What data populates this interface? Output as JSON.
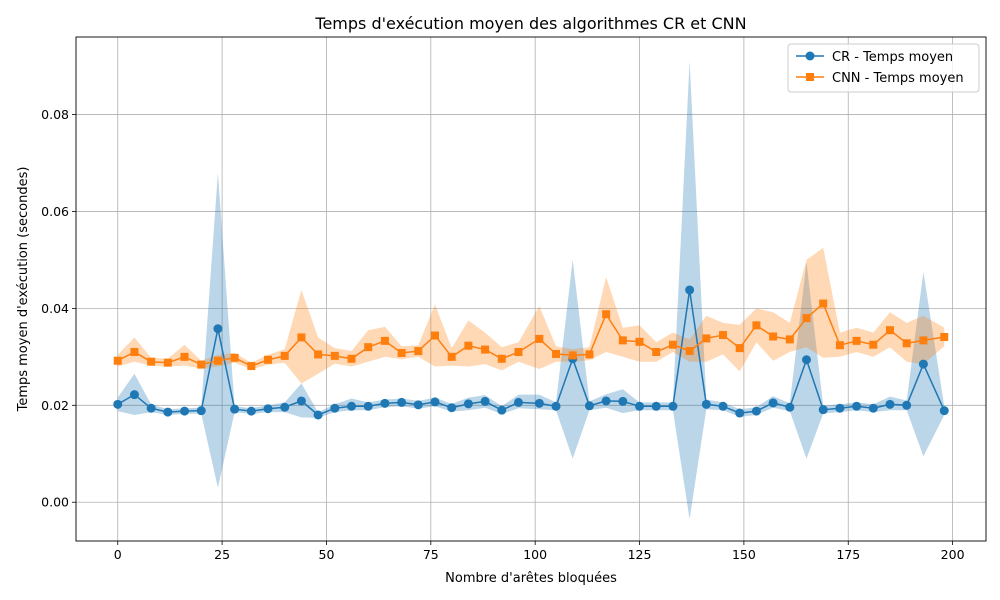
{
  "chart_data": {
    "type": "line",
    "title": "Temps d'exécution moyen des algorithmes CR et CNN",
    "xlabel": "Nombre d'arêtes bloquées",
    "ylabel": "Temps moyen d'exécution (secondes)",
    "xlim": [
      -10,
      208
    ],
    "ylim": [
      -0.008,
      0.096
    ],
    "xticks": [
      0,
      25,
      50,
      75,
      100,
      125,
      150,
      175,
      200
    ],
    "yticks": [
      0.0,
      0.02,
      0.04,
      0.06,
      0.08
    ],
    "ytick_labels": [
      "0.00",
      "0.02",
      "0.04",
      "0.06",
      "0.08"
    ],
    "grid": true,
    "legend_position": "top-right",
    "x": [
      0,
      4,
      8,
      12,
      16,
      20,
      24,
      28,
      32,
      36,
      40,
      44,
      48,
      52,
      56,
      60,
      64,
      68,
      72,
      76,
      80,
      84,
      88,
      92,
      96,
      101,
      105,
      109,
      113,
      117,
      121,
      125,
      129,
      133,
      137,
      141,
      145,
      149,
      153,
      157,
      161,
      165,
      169,
      173,
      177,
      181,
      185,
      189,
      193,
      198
    ],
    "series": [
      {
        "name": "CR - Temps moyen",
        "color": "#1f77b4",
        "band_color": "#1f77b4",
        "marker": "circle",
        "values": [
          0.0202,
          0.0222,
          0.0194,
          0.0186,
          0.0188,
          0.0189,
          0.0358,
          0.0192,
          0.0188,
          0.0193,
          0.0196,
          0.0209,
          0.018,
          0.0194,
          0.0198,
          0.0198,
          0.0204,
          0.0206,
          0.0201,
          0.0207,
          0.0195,
          0.0203,
          0.0208,
          0.019,
          0.0206,
          0.0204,
          0.0198,
          0.0296,
          0.0199,
          0.0209,
          0.0208,
          0.0198,
          0.0198,
          0.0198,
          0.0438,
          0.0202,
          0.0198,
          0.0184,
          0.0188,
          0.0205,
          0.0196,
          0.0294,
          0.0191,
          0.0194,
          0.0198,
          0.0194,
          0.0202,
          0.02,
          0.0285,
          0.0189
        ],
        "lower": [
          0.0188,
          0.018,
          0.0186,
          0.018,
          0.0182,
          0.0183,
          0.003,
          0.0186,
          0.0182,
          0.0186,
          0.0186,
          0.0175,
          0.0174,
          0.0186,
          0.019,
          0.019,
          0.0196,
          0.0198,
          0.0193,
          0.0198,
          0.0187,
          0.019,
          0.0195,
          0.0182,
          0.0194,
          0.0192,
          0.019,
          0.009,
          0.019,
          0.0195,
          0.0184,
          0.019,
          0.019,
          0.019,
          -0.0035,
          0.0192,
          0.019,
          0.0176,
          0.018,
          0.0195,
          0.0188,
          0.009,
          0.0183,
          0.0186,
          0.019,
          0.0186,
          0.019,
          0.019,
          0.0095,
          0.018
        ],
        "upper": [
          0.0216,
          0.0265,
          0.0202,
          0.0192,
          0.0194,
          0.0195,
          0.068,
          0.0198,
          0.0194,
          0.02,
          0.0206,
          0.0245,
          0.0186,
          0.0202,
          0.0214,
          0.0206,
          0.0212,
          0.0214,
          0.0209,
          0.0216,
          0.0203,
          0.0216,
          0.0221,
          0.0198,
          0.0222,
          0.0222,
          0.0206,
          0.05,
          0.0208,
          0.0223,
          0.0233,
          0.0206,
          0.0206,
          0.0206,
          0.091,
          0.0212,
          0.0206,
          0.0192,
          0.0196,
          0.0219,
          0.0204,
          0.0495,
          0.0199,
          0.0202,
          0.0206,
          0.0202,
          0.0218,
          0.021,
          0.0475,
          0.0198
        ]
      },
      {
        "name": "CNN - Temps moyen",
        "color": "#ff7f0e",
        "band_color": "#ff7f0e",
        "marker": "square",
        "values": [
          0.0292,
          0.031,
          0.029,
          0.0288,
          0.03,
          0.0284,
          0.0292,
          0.0298,
          0.0281,
          0.0294,
          0.0302,
          0.034,
          0.0305,
          0.0302,
          0.0296,
          0.032,
          0.0333,
          0.0308,
          0.0312,
          0.0344,
          0.03,
          0.0323,
          0.0315,
          0.0296,
          0.031,
          0.0337,
          0.0306,
          0.0303,
          0.0305,
          0.0388,
          0.0334,
          0.0331,
          0.031,
          0.0325,
          0.0312,
          0.0338,
          0.0345,
          0.0318,
          0.0365,
          0.0342,
          0.0336,
          0.038,
          0.041,
          0.0324,
          0.0333,
          0.0325,
          0.0355,
          0.0328,
          0.0334,
          0.0341
        ],
        "lower": [
          0.028,
          0.029,
          0.0282,
          0.028,
          0.0282,
          0.0276,
          0.028,
          0.0288,
          0.0274,
          0.0284,
          0.0288,
          0.0245,
          0.0265,
          0.0286,
          0.028,
          0.029,
          0.03,
          0.0295,
          0.03,
          0.028,
          0.0282,
          0.028,
          0.0285,
          0.0272,
          0.029,
          0.0275,
          0.029,
          0.029,
          0.0293,
          0.031,
          0.03,
          0.029,
          0.029,
          0.031,
          0.029,
          0.029,
          0.0305,
          0.027,
          0.033,
          0.0292,
          0.031,
          0.032,
          0.0298,
          0.03,
          0.031,
          0.03,
          0.032,
          0.029,
          0.0285,
          0.0322
        ],
        "upper": [
          0.0304,
          0.034,
          0.0298,
          0.0296,
          0.0325,
          0.0292,
          0.0304,
          0.0308,
          0.0288,
          0.0304,
          0.0316,
          0.0438,
          0.034,
          0.0318,
          0.0312,
          0.0355,
          0.0362,
          0.0322,
          0.0324,
          0.0408,
          0.0318,
          0.0375,
          0.035,
          0.032,
          0.033,
          0.0405,
          0.0322,
          0.0316,
          0.032,
          0.0465,
          0.036,
          0.0365,
          0.033,
          0.035,
          0.0336,
          0.0385,
          0.037,
          0.0366,
          0.04,
          0.0392,
          0.037,
          0.05,
          0.0525,
          0.035,
          0.036,
          0.035,
          0.0392,
          0.037,
          0.0385,
          0.036
        ]
      }
    ]
  }
}
